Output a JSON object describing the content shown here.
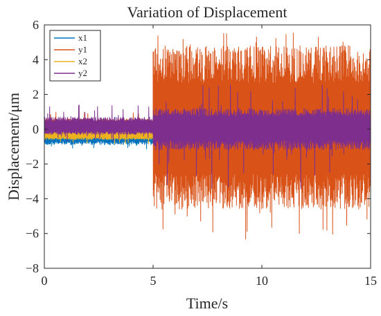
{
  "chart_data": {
    "type": "line",
    "title": "Variation of Displacement",
    "xlabel": "Time/s",
    "ylabel": "Displacement/μm",
    "xlim": [
      0,
      15
    ],
    "ylim": [
      -8,
      6
    ],
    "xticks": [
      0,
      5,
      10,
      15
    ],
    "yticks": [
      -8,
      -6,
      -4,
      -2,
      0,
      2,
      4,
      6
    ],
    "grid": false,
    "legend_position": "top-left",
    "series": [
      {
        "name": "x1",
        "color": "#0072BD",
        "segments": [
          {
            "x_start": 0,
            "x_end": 5,
            "center": -0.4,
            "upper": 0.2,
            "lower": -0.9,
            "upper_peak": 0.7,
            "lower_peak": -1.2
          }
        ]
      },
      {
        "name": "y1",
        "color": "#D95319",
        "segments": [
          {
            "x_start": 0,
            "x_end": 5,
            "center": 0.2,
            "upper": 0.6,
            "lower": -0.2,
            "upper_peak": 1.0,
            "lower_peak": -0.4
          },
          {
            "x_start": 5,
            "x_end": 15,
            "center": 0.0,
            "upper": 4.8,
            "lower": -4.6,
            "upper_peak": 5.6,
            "lower_peak": -6.4
          }
        ]
      },
      {
        "name": "x2",
        "color": "#EDB120",
        "segments": [
          {
            "x_start": 0,
            "x_end": 5,
            "center": -0.3,
            "upper": 0.1,
            "lower": -0.6,
            "upper_peak": 0.3,
            "lower_peak": -0.9
          }
        ]
      },
      {
        "name": "y2",
        "color": "#7E2F8E",
        "segments": [
          {
            "x_start": 0,
            "x_end": 5,
            "center": 0.1,
            "upper": 0.7,
            "lower": -0.3,
            "upper_peak": 1.4,
            "lower_peak": -0.7
          },
          {
            "x_start": 5,
            "x_end": 15,
            "center": 0.1,
            "upper": 1.2,
            "lower": -1.2,
            "upper_peak": 2.6,
            "lower_peak": -3.5
          }
        ]
      }
    ]
  }
}
